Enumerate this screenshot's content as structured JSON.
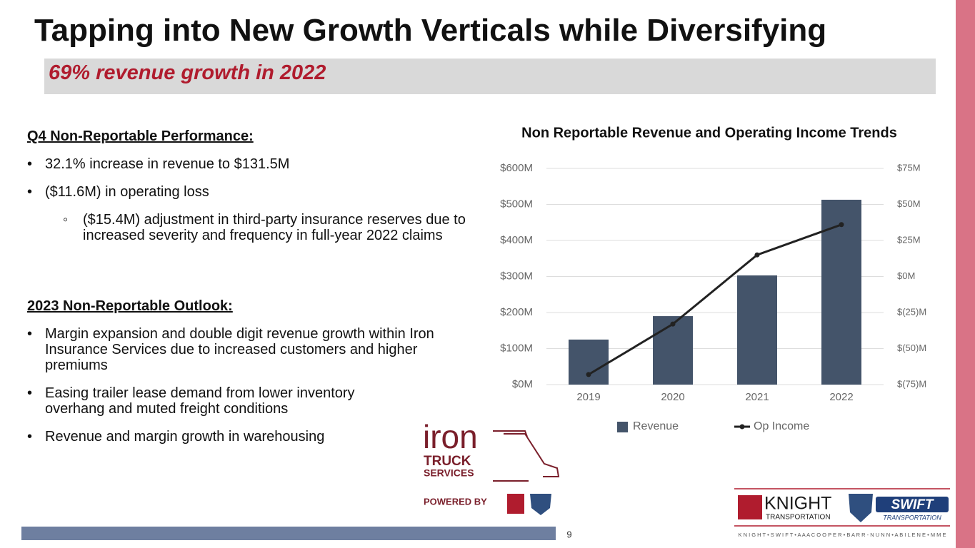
{
  "slide": {
    "title": "Tapping into New Growth Verticals while Diversifying",
    "subtitle": "69% revenue growth in 2022",
    "sections": [
      {
        "heading": "Q4 Non-Reportable Performance:",
        "bullets": [
          {
            "text": "32.1% increase in revenue to $131.5M"
          },
          {
            "text": "($11.6M) in operating loss",
            "sub": [
              "($15.4M) adjustment in third-party insurance reserves due to increased severity and frequency in full-year 2022 claims"
            ]
          }
        ]
      },
      {
        "heading": "2023 Non-Reportable Outlook:",
        "bullets": [
          {
            "text": "Margin expansion and double digit revenue growth within Iron Insurance Services due to increased customers and higher premiums"
          },
          {
            "text": "Easing trailer lease demand from lower inventory overhang and muted freight conditions"
          },
          {
            "text": "Revenue and margin growth in warehousing"
          }
        ]
      }
    ],
    "iron_logo": {
      "name": "iron",
      "line1": "TRUCK",
      "line2": "SERVICES",
      "powered": "POWERED BY"
    },
    "brand_logo": {
      "knight": "KNIGHT",
      "knight_sub": "TRANSPORTATION",
      "swift": "SWIFT",
      "swift_sub": "TRANSPORTATION",
      "footer": "K N I G H T • S W I F T • A A A  C O O P E R • B A R R - N U N N • A B I L E N E • M M E"
    },
    "page_number": "9"
  },
  "chart_data": {
    "type": "bar",
    "title": "Non Reportable Revenue and Operating Income Trends",
    "categories": [
      "2019",
      "2020",
      "2021",
      "2022"
    ],
    "series": [
      {
        "name": "Revenue",
        "color": "#44546a",
        "type": "bar",
        "values": [
          125,
          190,
          303,
          513
        ]
      },
      {
        "name": "Op Income",
        "color": "#222222",
        "type": "line",
        "axis": "y2",
        "values": [
          -68,
          -33,
          15,
          36
        ]
      }
    ],
    "ylim": [
      0,
      600
    ],
    "yticks": [
      {
        "value": 0,
        "label": "$0M"
      },
      {
        "value": 100,
        "label": "$100M"
      },
      {
        "value": 200,
        "label": "$200M"
      },
      {
        "value": 300,
        "label": "$300M"
      },
      {
        "value": 400,
        "label": "$400M"
      },
      {
        "value": 500,
        "label": "$500M"
      },
      {
        "value": 600,
        "label": "$600M"
      }
    ],
    "y2lim": [
      -75,
      75
    ],
    "y2ticks": [
      {
        "value": -75,
        "label": "$(75)M"
      },
      {
        "value": -50,
        "label": "$(50)M"
      },
      {
        "value": -25,
        "label": "$(25)M"
      },
      {
        "value": 0,
        "label": "$0M"
      },
      {
        "value": 25,
        "label": "$25M"
      },
      {
        "value": 50,
        "label": "$50M"
      },
      {
        "value": 75,
        "label": "$75M"
      }
    ],
    "grid": true,
    "legend": "bottom"
  }
}
